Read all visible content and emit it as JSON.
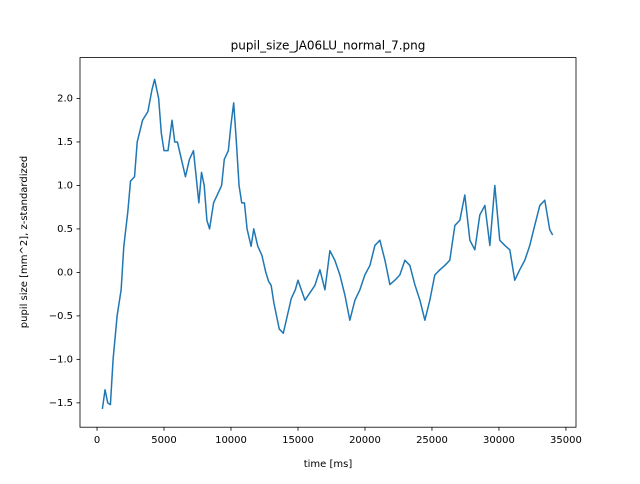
{
  "chart_data": {
    "type": "line",
    "title": "pupil_size_JA06LU_normal_7.png",
    "x_label": "time [ms]",
    "y_label": "pupil size [mm^2], z-standardized",
    "x": [
      400,
      600,
      800,
      1000,
      1200,
      1500,
      1800,
      2000,
      2300,
      2500,
      2800,
      3000,
      3400,
      3800,
      4100,
      4300,
      4600,
      4800,
      5000,
      5300,
      5600,
      5800,
      6000,
      6300,
      6600,
      6900,
      7200,
      7400,
      7600,
      7800,
      8000,
      8200,
      8400,
      8700,
      9000,
      9300,
      9500,
      9800,
      10000,
      10200,
      10400,
      10600,
      10800,
      11000,
      11200,
      11500,
      11700,
      12000,
      12300,
      12600,
      12800,
      13000,
      13200,
      13400,
      13600,
      13900,
      14200,
      14500,
      14800,
      15000,
      15520,
      16260,
      16640,
      17010,
      17380,
      17750,
      18130,
      18500,
      18870,
      19250,
      19620,
      19990,
      20370,
      20740,
      21110,
      21490,
      21860,
      22230,
      22600,
      22980,
      23350,
      23720,
      24100,
      24470,
      24840,
      25210,
      25590,
      25960,
      26330,
      26710,
      27080,
      27450,
      27830,
      28200,
      28570,
      28950,
      29320,
      29690,
      30060,
      30440,
      30810,
      31180,
      31550,
      31930,
      32300,
      32670,
      33050,
      33420,
      33790,
      34010
    ],
    "series": [
      {
        "name": "pupil size",
        "color": "#1f77b4",
        "values": [
          -1.57,
          -1.35,
          -1.5,
          -1.52,
          -1.0,
          -0.5,
          -0.2,
          0.3,
          0.7,
          1.05,
          1.1,
          1.5,
          1.75,
          1.85,
          2.1,
          2.22,
          2.0,
          1.6,
          1.4,
          1.4,
          1.75,
          1.5,
          1.5,
          1.3,
          1.1,
          1.3,
          1.4,
          1.1,
          0.8,
          1.15,
          1.0,
          0.6,
          0.5,
          0.8,
          0.9,
          1.0,
          1.3,
          1.4,
          1.7,
          1.95,
          1.5,
          1.0,
          0.8,
          0.8,
          0.5,
          0.3,
          0.5,
          0.3,
          0.2,
          0.0,
          -0.1,
          -0.15,
          -0.35,
          -0.5,
          -0.65,
          -0.7,
          -0.5,
          -0.3,
          -0.2,
          -0.09,
          -0.32,
          -0.15,
          0.03,
          -0.2,
          0.25,
          0.14,
          -0.03,
          -0.26,
          -0.55,
          -0.32,
          -0.2,
          -0.03,
          0.08,
          0.31,
          0.37,
          0.14,
          -0.14,
          -0.09,
          -0.03,
          0.14,
          0.08,
          -0.14,
          -0.32,
          -0.55,
          -0.32,
          -0.03,
          0.03,
          0.08,
          0.14,
          0.54,
          0.6,
          0.89,
          0.37,
          0.26,
          0.66,
          0.77,
          0.31,
          1.0,
          0.37,
          0.31,
          0.26,
          -0.09,
          0.03,
          0.14,
          0.31,
          0.54,
          0.77,
          0.83,
          0.49,
          0.43
        ]
      }
    ],
    "xlim": [
      -1270,
      35750
    ],
    "ylim": [
      -1.78,
      2.47
    ],
    "xticks": [
      0,
      5000,
      10000,
      15000,
      20000,
      25000,
      30000,
      35000
    ],
    "yticks": [
      {
        "value": -1.5,
        "label": "−1.5"
      },
      {
        "value": -1.0,
        "label": "−1.0"
      },
      {
        "value": -0.5,
        "label": "−0.5"
      },
      {
        "value": 0.0,
        "label": "0.0"
      },
      0.5,
      {
        "value": 1.0,
        "label": "1.0"
      },
      1.5,
      {
        "value": 2.0,
        "label": "2.0"
      }
    ],
    "grid": false
  }
}
